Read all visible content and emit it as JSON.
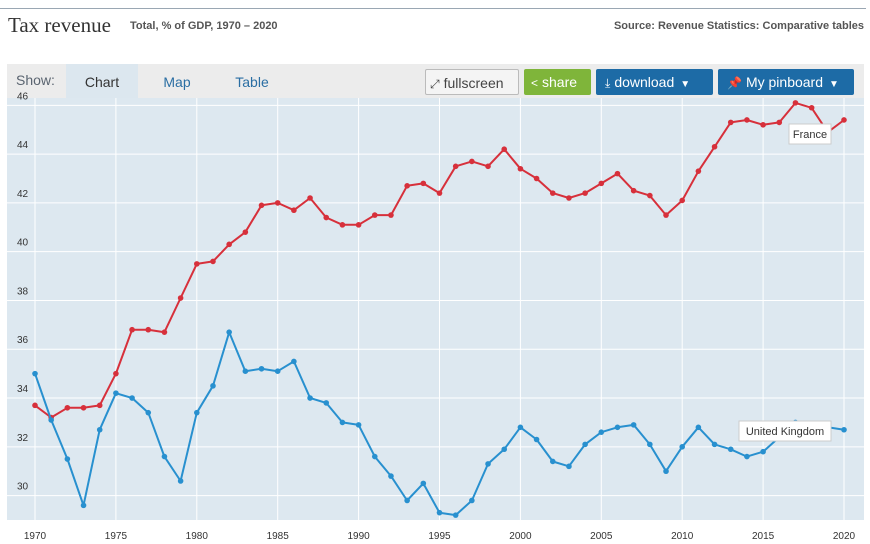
{
  "header": {
    "title": "Tax revenue",
    "subtitle": "Total, % of GDP, 1970 – 2020",
    "source": "Source: Revenue Statistics: Comparative tables"
  },
  "toolbar": {
    "show_label": "Show:",
    "tabs": [
      {
        "label": "Chart",
        "active": true
      },
      {
        "label": "Map",
        "active": false
      },
      {
        "label": "Table",
        "active": false
      }
    ],
    "fullscreen_label": "fullscreen",
    "share_label": "share",
    "download_label": "download",
    "pinboard_label": "My pinboard"
  },
  "colors": {
    "france": "#d7303b",
    "uk": "#2890cf",
    "plot_bg": "#dde8f0",
    "accent": "#1d6ba6",
    "share": "#7fb53a"
  },
  "chart_data": {
    "type": "line",
    "x": [
      1970,
      1971,
      1972,
      1973,
      1974,
      1975,
      1976,
      1977,
      1978,
      1979,
      1980,
      1981,
      1982,
      1983,
      1984,
      1985,
      1986,
      1987,
      1988,
      1989,
      1990,
      1991,
      1992,
      1993,
      1994,
      1995,
      1996,
      1997,
      1998,
      1999,
      2000,
      2001,
      2002,
      2003,
      2004,
      2005,
      2006,
      2007,
      2008,
      2009,
      2010,
      2011,
      2012,
      2013,
      2014,
      2015,
      2016,
      2017,
      2018,
      2019,
      2020
    ],
    "x_ticks": [
      1970,
      1975,
      1980,
      1985,
      1990,
      1995,
      2000,
      2005,
      2010,
      2015,
      2020
    ],
    "y_ticks": [
      30,
      32,
      34,
      36,
      38,
      40,
      42,
      44,
      46
    ],
    "ylim": [
      29.0,
      46.3
    ],
    "grid": true,
    "series": [
      {
        "name": "France",
        "color": "#d7303b",
        "values": [
          33.7,
          33.2,
          33.6,
          33.6,
          33.7,
          35.0,
          36.8,
          36.8,
          36.7,
          38.1,
          39.5,
          39.6,
          40.3,
          40.8,
          41.9,
          42.0,
          41.7,
          42.2,
          41.4,
          41.1,
          41.1,
          41.5,
          41.5,
          42.7,
          42.8,
          42.4,
          43.5,
          43.7,
          43.5,
          44.2,
          43.4,
          43.0,
          42.4,
          42.2,
          42.4,
          42.8,
          43.2,
          42.5,
          42.3,
          41.5,
          42.1,
          43.3,
          44.3,
          45.3,
          45.4,
          45.2,
          45.3,
          46.1,
          45.9,
          44.9,
          45.4
        ]
      },
      {
        "name": "United Kingdom",
        "color": "#2890cf",
        "values": [
          35.0,
          33.1,
          31.5,
          29.6,
          32.7,
          34.2,
          34.0,
          33.4,
          31.6,
          30.6,
          33.4,
          34.5,
          36.7,
          35.1,
          35.2,
          35.1,
          35.5,
          34.0,
          33.8,
          33.0,
          32.9,
          31.6,
          30.8,
          29.8,
          30.5,
          29.3,
          29.2,
          29.8,
          31.3,
          31.9,
          32.8,
          32.3,
          31.4,
          31.2,
          32.1,
          32.6,
          32.8,
          32.9,
          32.1,
          31.0,
          32.0,
          32.8,
          32.1,
          31.9,
          31.6,
          31.8,
          32.4,
          33.0,
          32.8,
          32.8,
          32.7
        ]
      }
    ]
  }
}
